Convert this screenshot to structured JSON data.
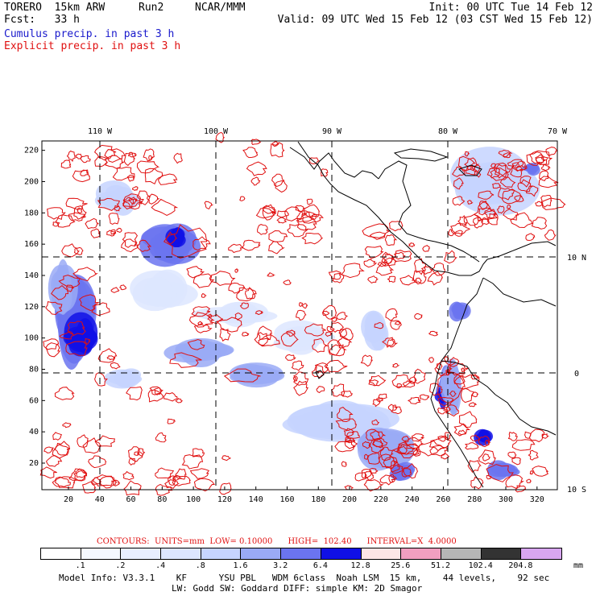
{
  "header": {
    "model": "TORERO  15km ARW",
    "run": "Run2",
    "org": "NCAR/MMM",
    "init": "Init: 00 UTC Tue 14 Feb 12",
    "fcst": "Fcst:   33 h",
    "valid": "Valid: 09 UTC Wed 15 Feb 12 (03 CST Wed 15 Feb 12)",
    "line_cumulus": "Cumulus precip. in past 3 h",
    "line_explicit": "Explicit precip. in past 3 h"
  },
  "map": {
    "top_ticks": [
      "110 W",
      "100 W",
      "90 W",
      "80 W",
      "70 W"
    ],
    "right_ticks": [
      "10 N",
      "0",
      "10 S"
    ],
    "y_ticks": [
      "20",
      "40",
      "60",
      "80",
      "100",
      "120",
      "140",
      "160",
      "180",
      "200",
      "220"
    ],
    "x_ticks": [
      "20",
      "40",
      "60",
      "80",
      "100",
      "120",
      "140",
      "160",
      "180",
      "200",
      "220",
      "240",
      "260",
      "280",
      "300",
      "320"
    ]
  },
  "contour_line": "CONTOURS:  UNITS=mm  LOW= 0.10000      HIGH=  102.40      INTERVAL=X  4.0000",
  "legend": {
    "colors": [
      "#ffffff",
      "#f4f8ff",
      "#e8eeff",
      "#dde6ff",
      "#c6d4ff",
      "#9aaaf6",
      "#6b74f0",
      "#1010e6",
      "#fde6e6",
      "#f19fc0",
      "#b6b6b6",
      "#333333",
      "#d8a6f0"
    ],
    "labels": [
      ".1",
      ".2",
      ".4",
      ".8",
      "1.6",
      "3.2",
      "6.4",
      "12.8",
      "25.6",
      "51.2",
      "102.4",
      "204.8"
    ],
    "unit": "mm"
  },
  "footer": {
    "line1": "Model Info: V3.3.1    KF      YSU PBL   WDM 6class  Noah LSM  15 km,    44 levels,    92 sec",
    "line2": "LW: Godd SW: Goddard DIFF: simple KM: 2D Smagor"
  }
}
